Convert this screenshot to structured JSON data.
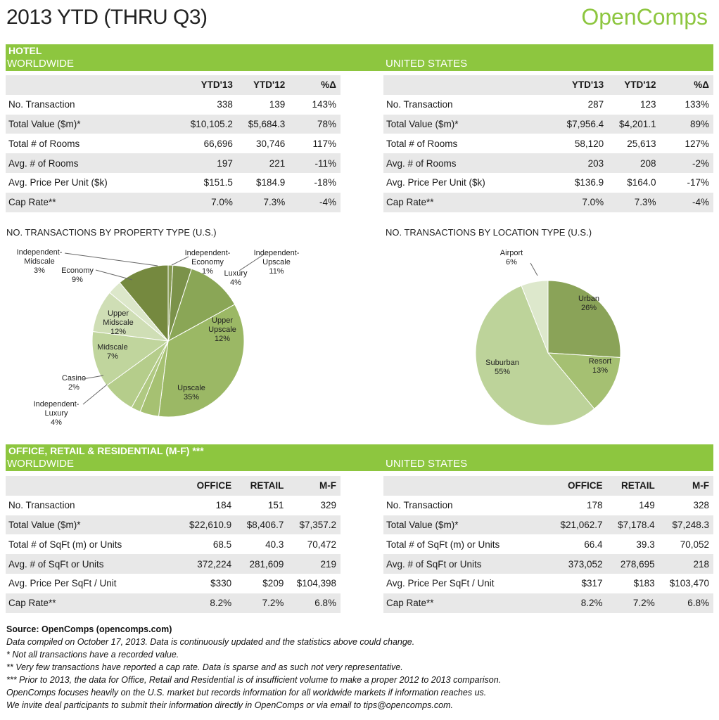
{
  "header": {
    "title": "2013 YTD (THRU Q3)",
    "brand": "OpenComps"
  },
  "hotel": {
    "section_title": "HOTEL",
    "worldwide": {
      "heading": "WORLDWIDE",
      "columns": [
        "YTD'13",
        "YTD'12",
        "%Δ"
      ],
      "rows": [
        [
          "No. Transaction",
          "338",
          "139",
          "143%"
        ],
        [
          "Total Value ($m)*",
          "$10,105.2",
          "$5,684.3",
          "78%"
        ],
        [
          "Total # of Rooms",
          "66,696",
          "30,746",
          "117%"
        ],
        [
          "Avg. # of Rooms",
          "197",
          "221",
          "-11%"
        ],
        [
          "Avg. Price Per Unit ($k)",
          "$151.5",
          "$184.9",
          "-18%"
        ],
        [
          "Cap Rate**",
          "7.0%",
          "7.3%",
          "-4%"
        ]
      ]
    },
    "us": {
      "heading": "UNITED STATES",
      "columns": [
        "YTD'13",
        "YTD'12",
        "%Δ"
      ],
      "rows": [
        [
          "No. Transaction",
          "287",
          "123",
          "133%"
        ],
        [
          "Total Value ($m)*",
          "$7,956.4",
          "$4,201.1",
          "89%"
        ],
        [
          "Total # of Rooms",
          "58,120",
          "25,613",
          "127%"
        ],
        [
          "Avg. # of Rooms",
          "203",
          "208",
          "-2%"
        ],
        [
          "Avg. Price Per Unit ($k)",
          "$136.9",
          "$164.0",
          "-17%"
        ],
        [
          "Cap Rate**",
          "7.0%",
          "7.3%",
          "-4%"
        ]
      ]
    }
  },
  "chart_data": [
    {
      "type": "pie",
      "title": "NO. TRANSACTIONS BY PROPERTY TYPE (U.S.)",
      "slices": [
        {
          "label": "Independent-Economy",
          "value": 1,
          "color": "#869a53"
        },
        {
          "label": "Luxury",
          "value": 4,
          "color": "#7b924a"
        },
        {
          "label": "Upper Upscale",
          "value": 12,
          "color": "#8aa656"
        },
        {
          "label": "Upscale",
          "value": 35,
          "color": "#9bb865"
        },
        {
          "label": "Independent-Luxury",
          "value": 4,
          "color": "#a6c172"
        },
        {
          "label": "Casino",
          "value": 2,
          "color": "#b0c982"
        },
        {
          "label": "Midscale",
          "value": 7,
          "color": "#b5cd8b"
        },
        {
          "label": "Upper Midscale",
          "value": 12,
          "color": "#c0d59d"
        },
        {
          "label": "Economy",
          "value": 9,
          "color": "#cfdeb5"
        },
        {
          "label": "Independent-Midscale",
          "value": 3,
          "color": "#dce7ca"
        },
        {
          "label": "Independent-Upscale",
          "value": 11,
          "color": "#75893f"
        }
      ],
      "labels_text": {
        "Independent-Economy": [
          "Independent-",
          "Economy",
          "1%"
        ],
        "Luxury": [
          "Luxury",
          "4%"
        ],
        "Upper Upscale": [
          "Upper",
          "Upscale",
          "12%"
        ],
        "Upscale": [
          "Upscale",
          "35%"
        ],
        "Independent-Luxury": [
          "Independent-",
          "Luxury",
          "4%"
        ],
        "Casino": [
          "Casino",
          "2%"
        ],
        "Midscale": [
          "Midscale",
          "7%"
        ],
        "Upper Midscale": [
          "Upper",
          "Midscale",
          "12%"
        ],
        "Economy": [
          "Economy",
          "9%"
        ],
        "Independent-Midscale": [
          "Independent-",
          "Midscale",
          "3%"
        ],
        "Independent-Upscale": [
          "Independent-",
          "Upscale",
          "11%"
        ]
      }
    },
    {
      "type": "pie",
      "title": "NO. TRANSACTIONS BY LOCATION TYPE (U.S.)",
      "slices": [
        {
          "label": "Urban",
          "value": 26,
          "color": "#8aa358"
        },
        {
          "label": "Resort",
          "value": 13,
          "color": "#a5c072"
        },
        {
          "label": "Suburban",
          "value": 55,
          "color": "#bdd39a"
        },
        {
          "label": "Airport",
          "value": 6,
          "color": "#dde8cc"
        }
      ],
      "labels_text": {
        "Urban": [
          "Urban",
          "26%"
        ],
        "Resort": [
          "Resort",
          "13%"
        ],
        "Suburban": [
          "Suburban",
          "55%"
        ],
        "Airport": [
          "Airport",
          "6%"
        ]
      }
    }
  ],
  "office": {
    "section_title": "OFFICE, RETAIL & RESIDENTIAL (M-F) ***",
    "worldwide": {
      "heading": "WORLDWIDE",
      "columns": [
        "OFFICE",
        "RETAIL",
        "M-F"
      ],
      "rows": [
        [
          "No. Transaction",
          "184",
          "151",
          "329"
        ],
        [
          "Total Value ($m)*",
          "$22,610.9",
          "$8,406.7",
          "$7,357.2"
        ],
        [
          "Total # of SqFt (m) or Units",
          "68.5",
          "40.3",
          "70,472"
        ],
        [
          "Avg. # of SqFt or Units",
          "372,224",
          "281,609",
          "219"
        ],
        [
          "Avg. Price Per SqFt / Unit",
          "$330",
          "$209",
          "$104,398"
        ],
        [
          "Cap Rate**",
          "8.2%",
          "7.2%",
          "6.8%"
        ]
      ]
    },
    "us": {
      "heading": "UNITED STATES",
      "columns": [
        "OFFICE",
        "RETAIL",
        "M-F"
      ],
      "rows": [
        [
          "No. Transaction",
          "178",
          "149",
          "328"
        ],
        [
          "Total Value ($m)*",
          "$21,062.7",
          "$7,178.4",
          "$7,248.3"
        ],
        [
          "Total # of SqFt (m) or Units",
          "66.4",
          "39.3",
          "70,052"
        ],
        [
          "Avg. # of SqFt or Units",
          "373,052",
          "278,695",
          "218"
        ],
        [
          "Avg. Price Per SqFt / Unit",
          "$317",
          "$183",
          "$103,470"
        ],
        [
          "Cap Rate**",
          "8.2%",
          "7.2%",
          "6.8%"
        ]
      ]
    }
  },
  "footer": {
    "source": "Source: OpenComps (opencomps.com)",
    "lines": [
      "Data compiled on October 17, 2013. Data is continuously updated and the statistics above could change.",
      "* Not all transactions have a recorded value.",
      "** Very few transactions have reported a cap rate. Data is sparse and as such not very representative.",
      "*** Prior to 2013, the data for Office, Retail and Residential is of insufficient volume to make a proper 2012 to 2013 comparison.",
      "OpenComps focuses heavily on the U.S. market but records information for all worldwide markets if information reaches us.",
      "We invite deal participants to submit their information directly in OpenComps or via email to tips@opencomps.com."
    ]
  }
}
